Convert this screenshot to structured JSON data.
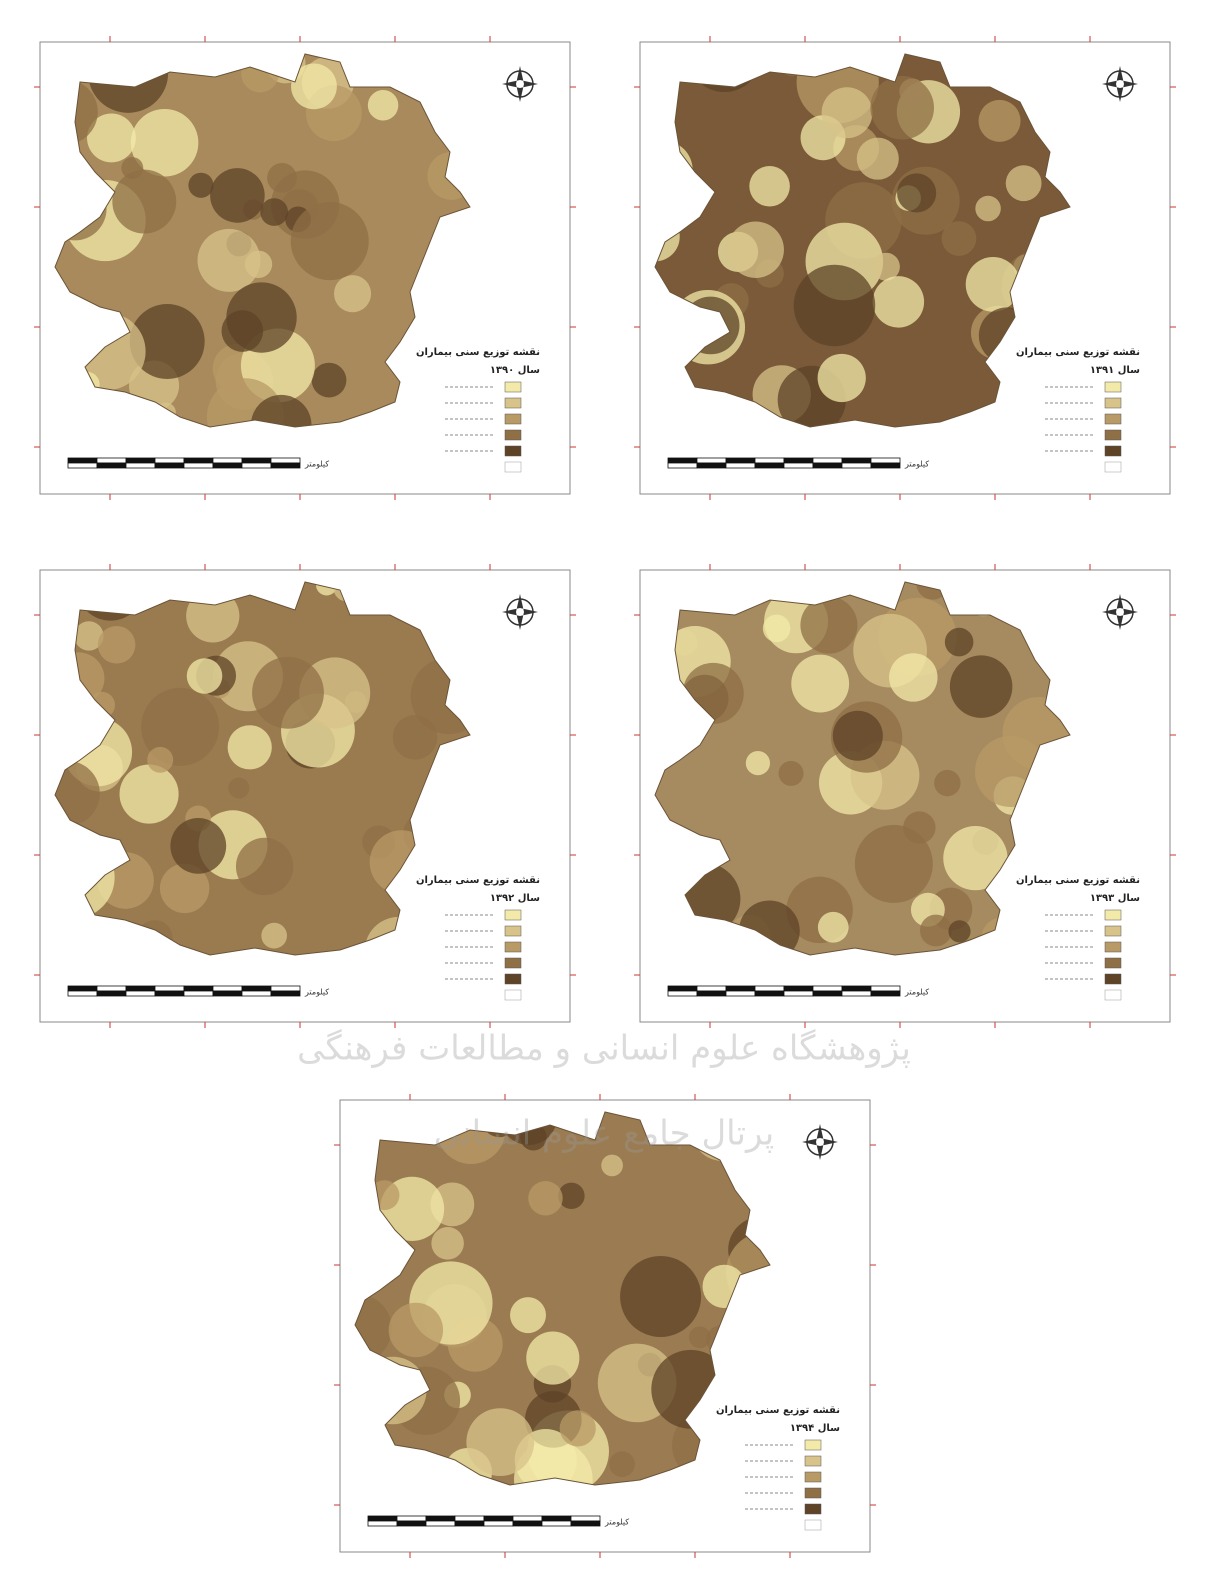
{
  "maps": [
    {
      "legend_title": "نقشه توزیع سنی بیماران",
      "year": "سال ۱۳۹۰"
    },
    {
      "legend_title": "نقشه توزیع سنی بیماران",
      "year": "سال ۱۳۹۱"
    },
    {
      "legend_title": "نقشه توزیع سنی بیماران",
      "year": "سال ۱۳۹۲"
    },
    {
      "legend_title": "نقشه توزیع سنی بیماران",
      "year": "سال ۱۳۹۳"
    },
    {
      "legend_title": "نقشه توزیع سنی بیماران",
      "year": "سال ۱۳۹۴"
    }
  ],
  "scale_unit": "کیلومتر",
  "watermark": [
    "پژوهشگاه علوم انسانی و مطالعات فرهنگی",
    "پرتال جامع علوم انسانی"
  ]
}
